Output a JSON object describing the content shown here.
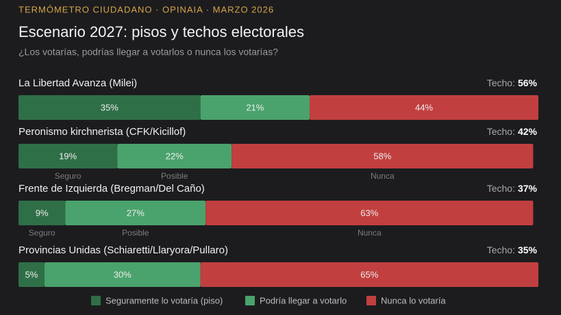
{
  "header": "TERMÓMETRO CIUDADANO · OPINAIA · MARZO 2026",
  "chart_data": {
    "type": "stacked-bar-horizontal",
    "title": "Escenario 2027: pisos y techos electorales",
    "subtitle": "¿Los votarías, podrías llegar a votarlos o nunca los votarías?",
    "categories": [
      "La Libertad Avanza (Milei)",
      "Peronismo kirchnerista (CFK/Kicillof)",
      "Frente de Izquierda (Bregman/Del Caño)",
      "Provincias Unidas (Schiaretti/Llaryora/Pullaro)"
    ],
    "xlim": [
      0,
      100
    ],
    "series": [
      {
        "name": "Seguramente lo votaría (piso)",
        "color": "#2f6f47",
        "values": [
          35,
          19,
          9,
          5
        ],
        "value_labels": [
          "35%",
          "19%",
          "9%",
          "5%"
        ]
      },
      {
        "name": "Podría llegar a votarlo",
        "color": "#4aa36c",
        "values": [
          21,
          22,
          27,
          30
        ],
        "value_labels": [
          "21%",
          "22%",
          "27%",
          "30%"
        ]
      },
      {
        "name": "Nunca lo votaría",
        "color": "#c23f3f",
        "values": [
          44,
          58,
          63,
          65
        ],
        "value_labels": [
          "44%",
          "58%",
          "63%",
          "65%"
        ]
      }
    ],
    "ceiling": {
      "label": "Techo:",
      "values": [
        56,
        42,
        37,
        35
      ],
      "value_labels": [
        "56%",
        "42%",
        "37%",
        "35%"
      ]
    },
    "segment_captions": [
      null,
      [
        "Seguro",
        "Posible",
        "Nunca"
      ],
      [
        "Seguro",
        "Posible",
        "Nunca"
      ],
      null
    ],
    "legend": "bottom"
  }
}
